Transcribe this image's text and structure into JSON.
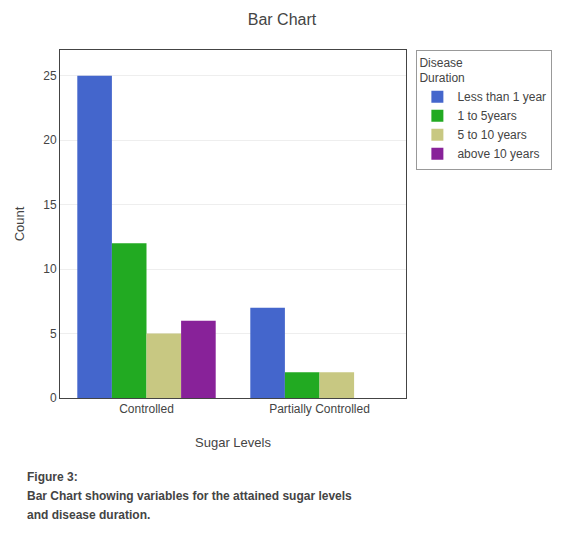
{
  "chart_data": {
    "type": "bar",
    "title": "Bar Chart",
    "xlabel": "Sugar Levels",
    "ylabel": "Count",
    "categories": [
      "Controlled",
      "Partially Controlled"
    ],
    "series": [
      {
        "name": "Less than 1 year",
        "color": "#4466CC",
        "values": [
          25,
          7
        ]
      },
      {
        "name": "1 to 5years",
        "color": "#22AA22",
        "values": [
          12,
          2
        ]
      },
      {
        "name": "5 to 10 years",
        "color": "#C8C882",
        "values": [
          5,
          2
        ]
      },
      {
        "name": "above 10 years",
        "color": "#882299",
        "values": [
          6,
          0
        ]
      }
    ],
    "ylim": [
      0,
      27
    ],
    "yticks": [
      0,
      5,
      10,
      15,
      20,
      25
    ],
    "grid": true,
    "legend": "right",
    "legend_title": "Disease\nDuration",
    "annotations": [
      "Figure 3:",
      "Bar Chart showing variables for the attained sugar levels",
      "and disease duration."
    ]
  }
}
